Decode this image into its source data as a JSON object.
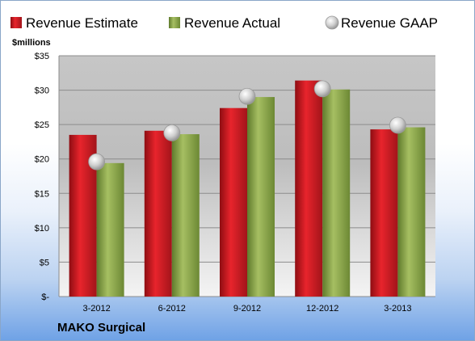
{
  "chart_data": {
    "type": "bar",
    "unit_label": "$millions",
    "categories": [
      "3-2012",
      "6-2012",
      "9-2012",
      "12-2012",
      "3-2013"
    ],
    "series": [
      {
        "name": "Revenue Estimate",
        "kind": "bar",
        "color": "#d01c24",
        "values": [
          23.5,
          24.1,
          27.4,
          31.4,
          24.3
        ]
      },
      {
        "name": "Revenue Actual",
        "kind": "bar",
        "color": "#8faa4c",
        "values": [
          19.4,
          23.6,
          29.0,
          30.1,
          24.6
        ]
      },
      {
        "name": "Revenue GAAP",
        "kind": "marker",
        "color": "#c9c9c9",
        "values": [
          19.6,
          23.8,
          29.1,
          30.2,
          24.9
        ]
      }
    ],
    "yticks": [
      "$-",
      "$5",
      "$10",
      "$15",
      "$20",
      "$25",
      "$30",
      "$35"
    ],
    "ylim": [
      0,
      35
    ],
    "grid": true,
    "legend_position": "top"
  },
  "footer": {
    "company": "MAKO Surgical"
  }
}
